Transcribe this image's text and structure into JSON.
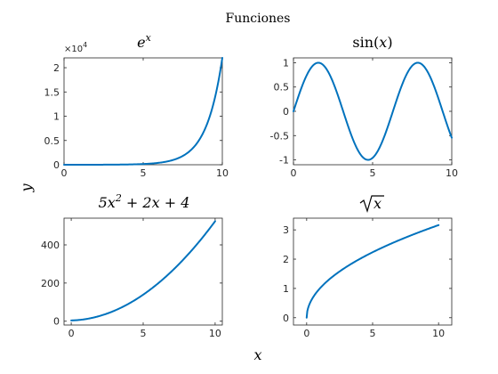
{
  "figure": {
    "suptitle": "Funciones",
    "xlabel": "x",
    "ylabel": "y",
    "series_color": "#0072bd"
  },
  "chart_data": [
    {
      "type": "line",
      "title": "e^x",
      "function": "exp",
      "x": [
        0,
        1,
        2,
        3,
        4,
        5,
        6,
        7,
        8,
        9,
        10
      ],
      "y": [
        1,
        2.72,
        7.39,
        20.09,
        54.6,
        148.41,
        403.43,
        1096.63,
        2980.96,
        8103.08,
        22026.47
      ],
      "xlim": [
        0,
        10
      ],
      "ylim": [
        0,
        22026.47
      ],
      "xticks": [
        "0",
        "5",
        "10"
      ],
      "yticks": [
        "0",
        "0.5",
        "1",
        "1.5",
        "2"
      ],
      "y_exponent": "×10^4",
      "y_exponent_base": "×10",
      "y_exponent_power": "4",
      "grid": false
    },
    {
      "type": "line",
      "title": "sin(x)",
      "function": "sin",
      "x": [
        0,
        1,
        2,
        3,
        4,
        5,
        6,
        7,
        8,
        9,
        10
      ],
      "y": [
        0,
        0.84,
        0.91,
        0.14,
        -0.76,
        -0.96,
        -0.28,
        0.66,
        0.99,
        0.41,
        -0.54
      ],
      "xlim": [
        0,
        10
      ],
      "ylim": [
        -1.1,
        1.1
      ],
      "xticks": [
        "0",
        "5",
        "10"
      ],
      "yticks": [
        "-1",
        "-0.5",
        "0",
        "0.5",
        "1"
      ],
      "grid": false
    },
    {
      "type": "line",
      "title": "5x^2 + 2x + 4",
      "function": "quadratic",
      "x": [
        0,
        1,
        2,
        3,
        4,
        5,
        6,
        7,
        8,
        9,
        10
      ],
      "y": [
        4,
        11,
        28,
        55,
        92,
        139,
        196,
        263,
        340,
        427,
        524
      ],
      "xlim": [
        -0.5,
        10.5
      ],
      "ylim": [
        -20,
        540
      ],
      "xticks": [
        "0",
        "5",
        "10"
      ],
      "yticks": [
        "0",
        "200",
        "400"
      ],
      "grid": false
    },
    {
      "type": "line",
      "title": "√x",
      "function": "sqrt",
      "x": [
        0,
        1,
        2,
        3,
        4,
        5,
        6,
        7,
        8,
        9,
        10
      ],
      "y": [
        0,
        1,
        1.41,
        1.73,
        2,
        2.24,
        2.45,
        2.65,
        2.83,
        3,
        3.16
      ],
      "xlim": [
        -1,
        11
      ],
      "ylim": [
        -0.25,
        3.4
      ],
      "xticks": [
        "0",
        "5",
        "10"
      ],
      "yticks": [
        "0",
        "1",
        "2",
        "3"
      ],
      "grid": false
    }
  ]
}
